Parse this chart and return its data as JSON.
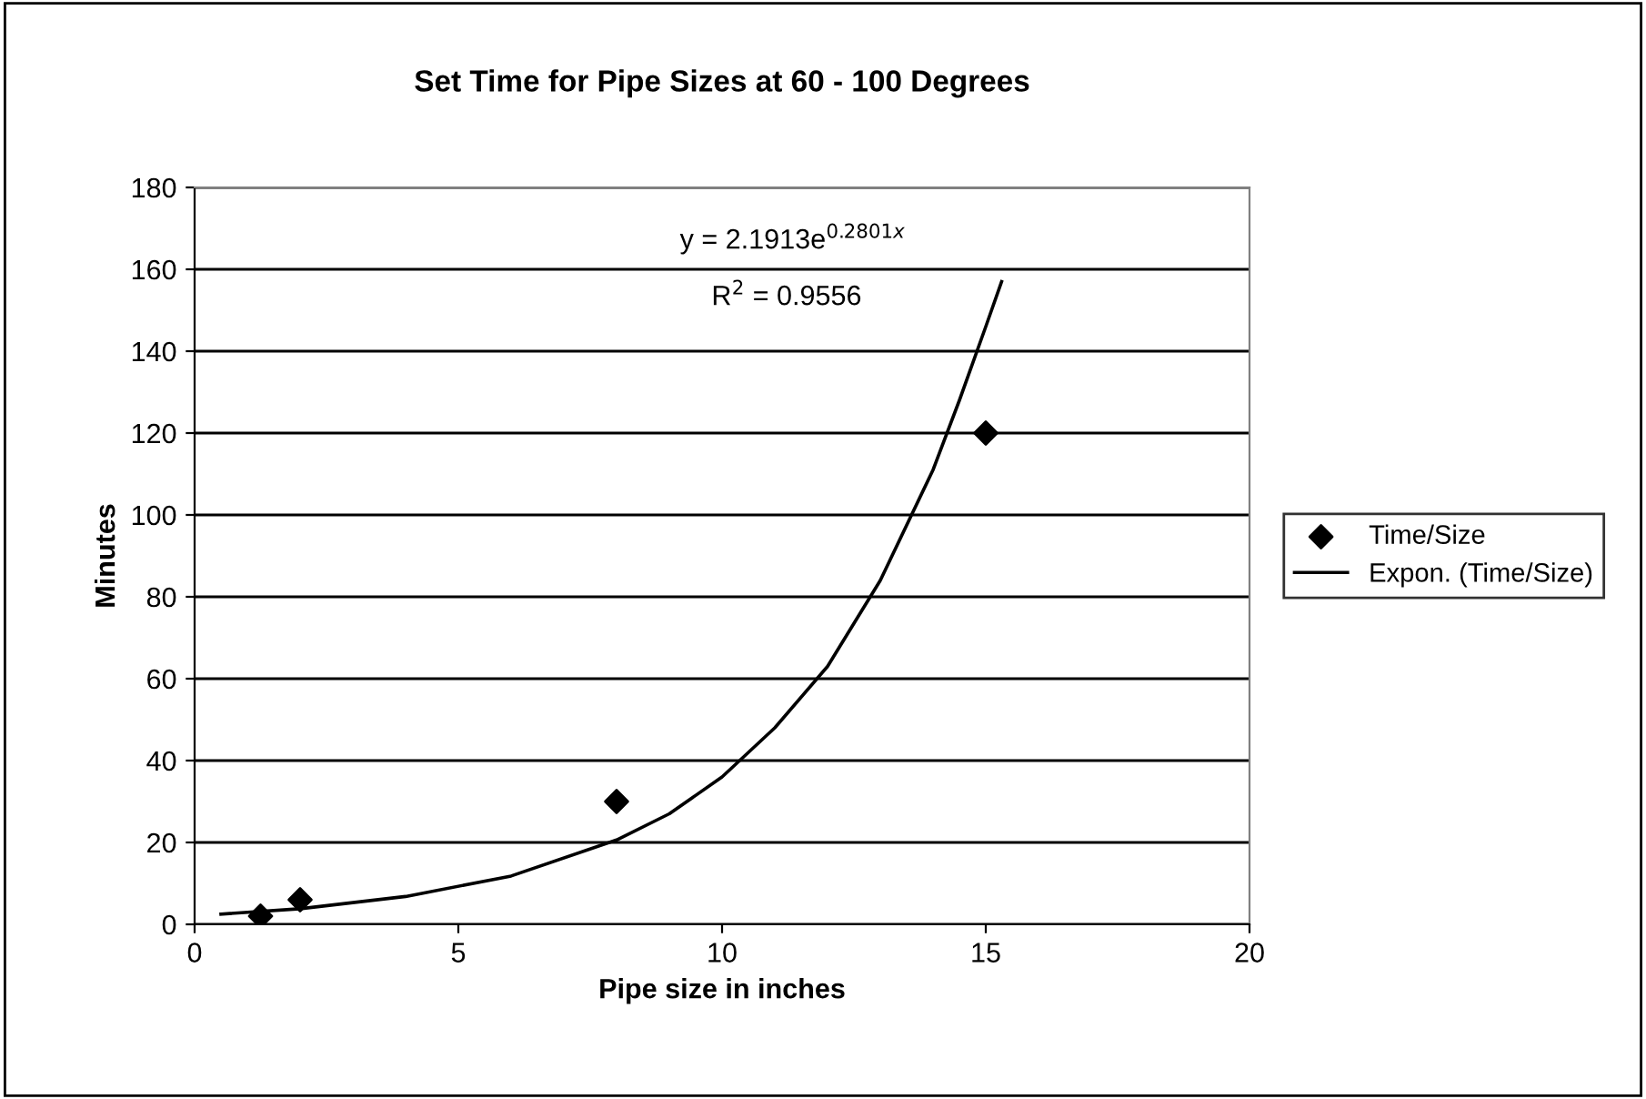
{
  "chart_data": {
    "type": "scatter",
    "title": "Set Time for Pipe Sizes at 60 - 100 Degrees",
    "xlabel": "Pipe size in inches",
    "ylabel": "Minutes",
    "series": [
      {
        "name": "Time/Size",
        "color": "#000000",
        "marker": "diamond",
        "x": [
          1.25,
          2,
          8,
          15
        ],
        "values": [
          2,
          6,
          30,
          120
        ]
      },
      {
        "name": "Expon. (Time/Size)",
        "type": "line",
        "color": "#000000",
        "marker": "none",
        "line_style": "solid",
        "x": [
          0.5,
          2,
          4,
          6,
          8,
          9,
          10,
          11,
          12,
          13,
          14,
          14.5,
          15,
          15.3
        ],
        "values": [
          2.5,
          3.8,
          6.8,
          11.8,
          20.6,
          27,
          36,
          48,
          63,
          84,
          111,
          128,
          146,
          157
        ]
      }
    ],
    "annotations": [
      "y = 2.1913e$^{0.2801x}$",
      "R$^{2}$ = 0.9556"
    ],
    "xlim": [
      0,
      20
    ],
    "xticks": [
      0,
      5,
      10,
      15,
      20
    ],
    "ylim": [
      0,
      180
    ],
    "yticks": [
      0,
      20,
      40,
      60,
      80,
      100,
      120,
      140,
      160,
      180
    ],
    "grid": "y",
    "legend": "right"
  }
}
